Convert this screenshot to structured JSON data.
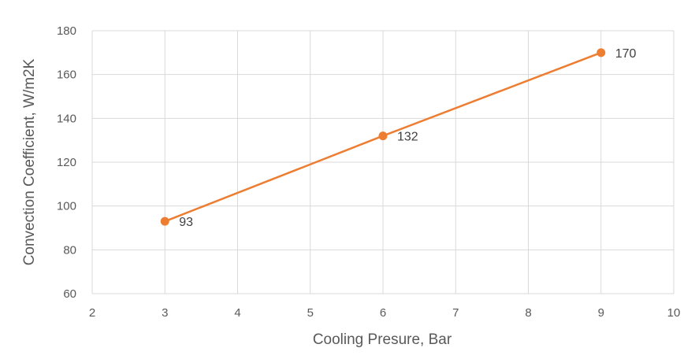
{
  "chart_data": {
    "type": "line",
    "title": "",
    "xlabel": "Cooling Presure, Bar",
    "ylabel": "Convection Coefficient,  W/m2K",
    "xlim": [
      2,
      10
    ],
    "ylim": [
      60,
      180
    ],
    "xticks": [
      2,
      3,
      4,
      5,
      6,
      7,
      8,
      9,
      10
    ],
    "yticks": [
      60,
      80,
      100,
      120,
      140,
      160,
      180
    ],
    "grid": true,
    "legend": "none",
    "series": [
      {
        "color": "#ed7d31",
        "points": [
          {
            "x": 3,
            "y": 93,
            "label": "93"
          },
          {
            "x": 6,
            "y": 132,
            "label": "132"
          },
          {
            "x": 9,
            "y": 170,
            "label": "170"
          }
        ]
      }
    ]
  }
}
